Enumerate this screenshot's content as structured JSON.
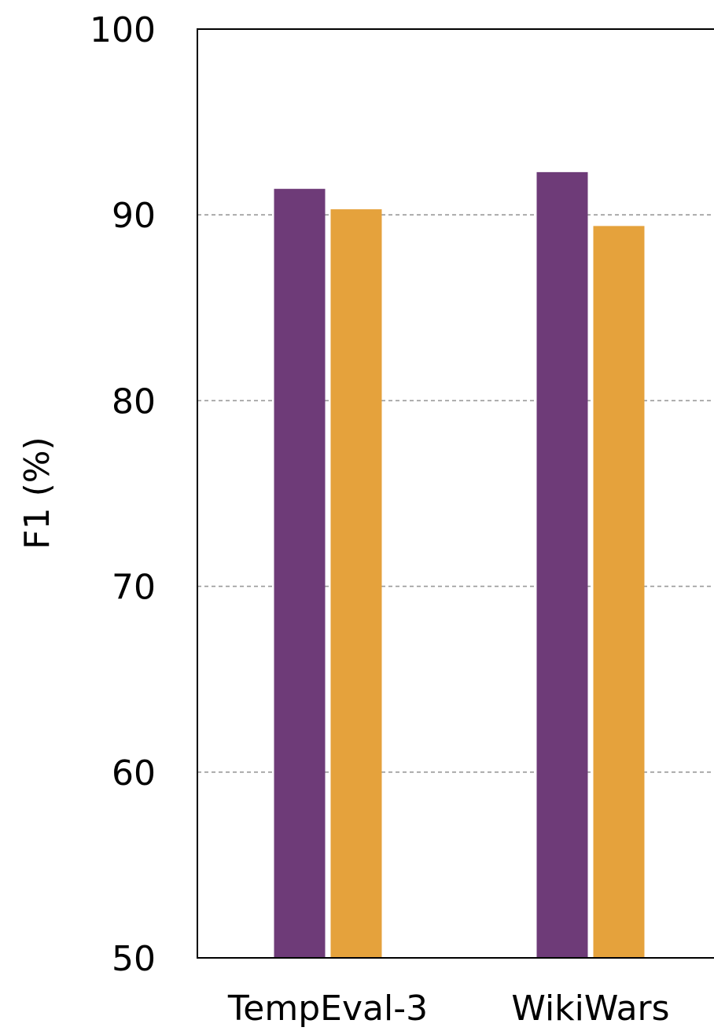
{
  "chart_data": {
    "type": "bar",
    "title": "",
    "xlabel": "",
    "ylabel": "F1 (%)",
    "ylim": [
      50,
      100
    ],
    "yticks": [
      50,
      60,
      70,
      80,
      90,
      100
    ],
    "grid": true,
    "categories": [
      "TempEval-3",
      "WikiWars"
    ],
    "series": [
      {
        "values": [
          91.4,
          92.3
        ],
        "color": "#6e3b78"
      },
      {
        "values": [
          90.3,
          89.4
        ],
        "color": "#e5a23c"
      }
    ]
  }
}
